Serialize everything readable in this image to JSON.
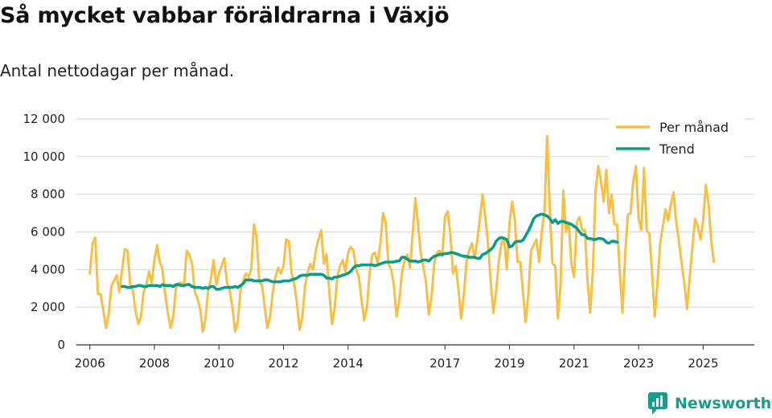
{
  "title": "Så mycket vabbar föräldrarna i Växjö",
  "subtitle": "Antal nettodagar per månad.",
  "brand": {
    "name": "Newsworthy",
    "icon": "newsworthy-logo-icon"
  },
  "colors": {
    "monthly": "#f7bf45",
    "trend": "#0f9b8a",
    "grid": "#d9d9d9",
    "axis": "#333333",
    "brand": "#1a9b8c"
  },
  "chart_data": {
    "type": "line",
    "title": "Så mycket vabbar föräldrarna i Växjö",
    "subtitle": "Antal nettodagar per månad.",
    "x_ticks": [
      {
        "label": "2006",
        "year": 2006
      },
      {
        "label": "2008",
        "year": 2008
      },
      {
        "label": "2010",
        "year": 2010
      },
      {
        "label": "2012",
        "year": 2012
      },
      {
        "label": "2014",
        "year": 2014
      },
      {
        "label": "2017",
        "year": 2017
      },
      {
        "label": "2019",
        "year": 2019
      },
      {
        "label": "2021",
        "year": 2021
      },
      {
        "label": "2023",
        "year": 2023
      },
      {
        "label": "2025",
        "year": 2025
      }
    ],
    "xlim": [
      "2005-08",
      "2026-08"
    ],
    "y_ticks": [
      {
        "label": "0",
        "value": 0
      },
      {
        "label": "2 000",
        "value": 2000
      },
      {
        "label": "4 000",
        "value": 4000
      },
      {
        "label": "6 000",
        "value": 6000
      },
      {
        "label": "8 000",
        "value": 8000
      },
      {
        "label": "10 000",
        "value": 10000
      },
      {
        "label": "12 000",
        "value": 12000
      }
    ],
    "ylim": [
      0,
      12000
    ],
    "grid": "horizontal",
    "legend_position": "top-right",
    "legend": [
      "Per månad",
      "Trend"
    ],
    "series": [
      {
        "name": "Per månad",
        "start": "2006-01",
        "values": [
          3800,
          5400,
          5700,
          2700,
          2700,
          1800,
          900,
          1600,
          3100,
          3400,
          3700,
          2800,
          4000,
          5100,
          5000,
          3200,
          2900,
          1800,
          1100,
          1500,
          2800,
          3200,
          3900,
          3300,
          4500,
          5300,
          4400,
          4000,
          2700,
          1700,
          900,
          1500,
          3000,
          3300,
          3300,
          3100,
          5000,
          4800,
          4300,
          2800,
          2500,
          1900,
          700,
          1400,
          2900,
          3500,
          4500,
          3200,
          3800,
          4200,
          4600,
          3300,
          2900,
          2000,
          700,
          1200,
          2900,
          3400,
          3800,
          3600,
          4000,
          6400,
          5700,
          3300,
          3200,
          2000,
          900,
          1500,
          2800,
          3600,
          4100,
          3800,
          4200,
          5600,
          5500,
          3800,
          3200,
          2200,
          800,
          1500,
          3100,
          3900,
          4300,
          4000,
          5000,
          5600,
          6100,
          4300,
          4800,
          2800,
          1100,
          1900,
          3600,
          4200,
          4500,
          3900,
          4900,
          5200,
          5000,
          4000,
          3600,
          2400,
          1300,
          2000,
          3800,
          4800,
          4900,
          4300,
          5400,
          7000,
          6500,
          4300,
          4000,
          3200,
          1500,
          2300,
          3800,
          4500,
          4800,
          4100,
          5900,
          7800,
          6400,
          4900,
          4100,
          3300,
          1600,
          2500,
          4300,
          4900,
          5000,
          4700,
          6800,
          7100,
          5900,
          3800,
          4200,
          3000,
          1400,
          2600,
          4400,
          5000,
          5400,
          4600,
          5500,
          6700,
          8000,
          6800,
          5400,
          3400,
          1700,
          2800,
          4400,
          5400,
          5700,
          4000,
          6500,
          7600,
          6600,
          4400,
          4400,
          2800,
          1200,
          2700,
          5000,
          5300,
          5600,
          4400,
          6000,
          7100,
          11100,
          7000,
          4300,
          4200,
          1400,
          3200,
          8200,
          6000,
          6500,
          4300,
          3600,
          6500,
          6800,
          6100,
          6100,
          3400,
          1700,
          4000,
          8200,
          9500,
          8700,
          7600,
          9300,
          7000,
          8000,
          6400,
          6400,
          3900,
          1700,
          4800,
          6900,
          7000,
          8700,
          9500,
          6700,
          6100,
          9400,
          6100,
          5900,
          3800,
          1500,
          3300,
          5400,
          6300,
          7200,
          6600,
          7500,
          8100,
          6500,
          5500,
          4300,
          3300,
          1900,
          3600,
          5200,
          6700,
          6300,
          5600,
          6600,
          8500,
          7500,
          5500,
          4400
        ]
      },
      {
        "name": "Trend",
        "start": "2007-01",
        "values": [
          3100,
          3100,
          3050,
          3050,
          3100,
          3100,
          3150,
          3150,
          3100,
          3100,
          3150,
          3150,
          3150,
          3150,
          3100,
          3200,
          3150,
          3150,
          3150,
          3100,
          3200,
          3200,
          3150,
          3150,
          3200,
          3200,
          3100,
          3050,
          3050,
          3050,
          3000,
          3050,
          3000,
          3100,
          3100,
          2950,
          2950,
          3000,
          3050,
          3050,
          3050,
          3050,
          3100,
          3050,
          3150,
          3250,
          3450,
          3450,
          3450,
          3400,
          3400,
          3400,
          3400,
          3450,
          3450,
          3400,
          3350,
          3350,
          3350,
          3350,
          3400,
          3400,
          3400,
          3450,
          3500,
          3550,
          3650,
          3700,
          3700,
          3700,
          3750,
          3750,
          3750,
          3750,
          3750,
          3700,
          3550,
          3550,
          3500,
          3600,
          3600,
          3650,
          3700,
          3750,
          3800,
          3900,
          4100,
          4200,
          4200,
          4250,
          4250,
          4250,
          4250,
          4250,
          4200,
          4250,
          4300,
          4350,
          4400,
          4400,
          4400,
          4400,
          4450,
          4450,
          4650,
          4650,
          4550,
          4450,
          4450,
          4450,
          4400,
          4450,
          4500,
          4500,
          4450,
          4600,
          4700,
          4750,
          4800,
          4800,
          4850,
          4850,
          4900,
          4900,
          4850,
          4800,
          4750,
          4700,
          4700,
          4650,
          4650,
          4650,
          4600,
          4600,
          4800,
          4850,
          4950,
          5050,
          5200,
          5500,
          5650,
          5700,
          5650,
          5600,
          5200,
          5250,
          5450,
          5500,
          5500,
          5550,
          5800,
          6050,
          6350,
          6700,
          6850,
          6900,
          6950,
          6900,
          6850,
          6700,
          6500,
          6650,
          6450,
          6550,
          6550,
          6500,
          6450,
          6400,
          6300,
          6200,
          6000,
          5850,
          5850,
          5650,
          5650,
          5600,
          5600,
          5650,
          5650,
          5600,
          5450,
          5400,
          5500,
          5500,
          5450
        ]
      }
    ]
  }
}
